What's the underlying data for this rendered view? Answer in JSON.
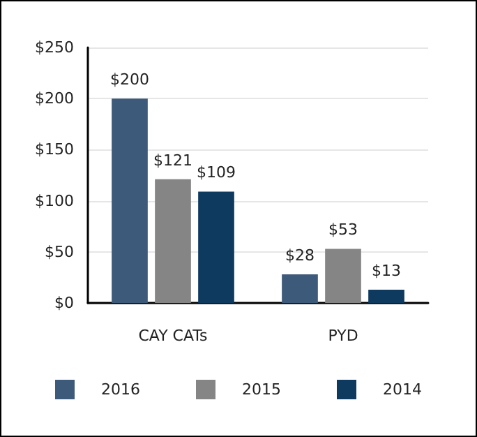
{
  "chart_data": {
    "type": "bar",
    "categories": [
      "CAY CATs",
      "PYD"
    ],
    "series": [
      {
        "name": "2016",
        "color": "#3d5a7a",
        "values": [
          200,
          28
        ],
        "value_labels": [
          "$200",
          "$28"
        ]
      },
      {
        "name": "2015",
        "color": "#858585",
        "values": [
          121,
          53
        ],
        "value_labels": [
          "$121",
          "$53"
        ]
      },
      {
        "name": "2014",
        "color": "#0e3a5f",
        "values": [
          109,
          13
        ],
        "value_labels": [
          "$109",
          "$13"
        ]
      }
    ],
    "ylim": [
      0,
      250
    ],
    "yticks": [
      {
        "value": 0,
        "label": "$0"
      },
      {
        "value": 50,
        "label": "$50"
      },
      {
        "value": 100,
        "label": "$100"
      },
      {
        "value": 150,
        "label": "$150"
      },
      {
        "value": 200,
        "label": "$200"
      },
      {
        "value": 250,
        "label": "$250"
      }
    ],
    "grid": "y",
    "legend": "bottom"
  }
}
